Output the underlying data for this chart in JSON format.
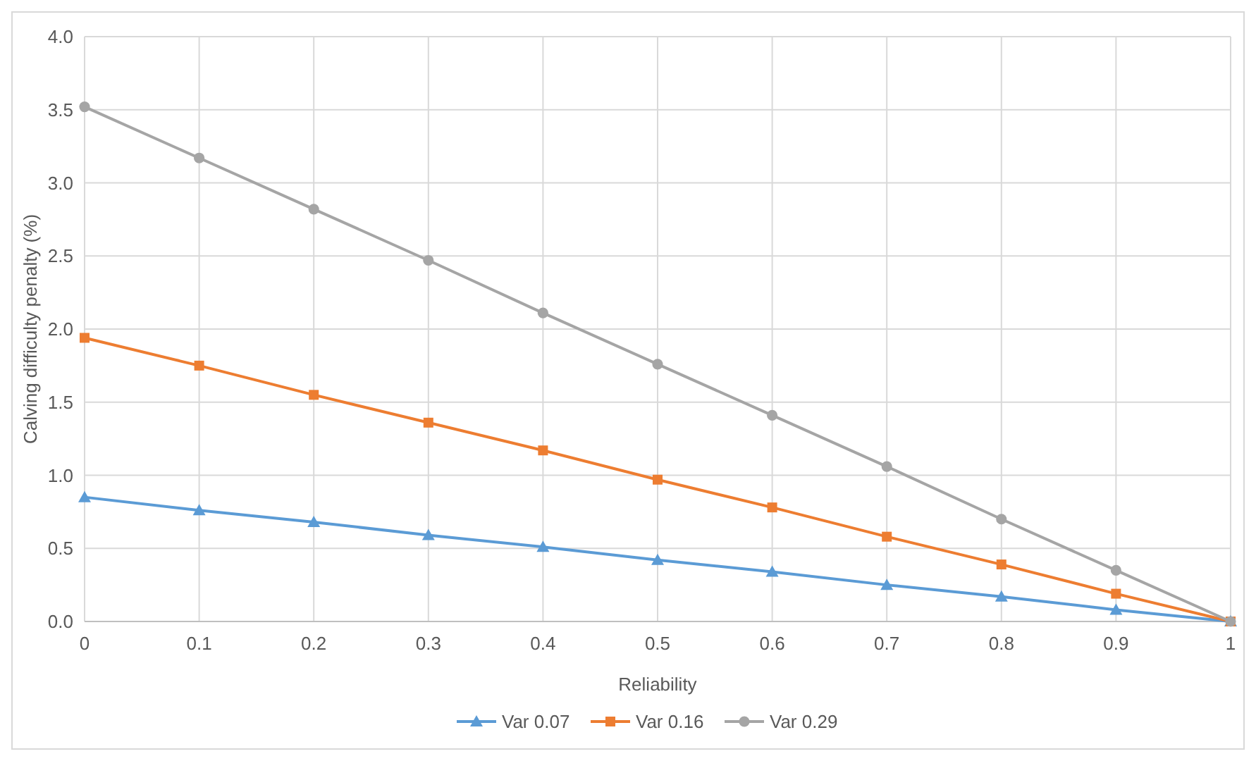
{
  "chart_data": {
    "type": "line",
    "xlabel": "Reliability",
    "ylabel": "Calving difficulty penalty (%)",
    "x": [
      0,
      0.1,
      0.2,
      0.3,
      0.4,
      0.5,
      0.6,
      0.7,
      0.8,
      0.9,
      1
    ],
    "xlim": [
      0,
      1
    ],
    "xticks": [
      0,
      0.1,
      0.2,
      0.3,
      0.4,
      0.5,
      0.6,
      0.7,
      0.8,
      0.9,
      1
    ],
    "ylim": [
      0,
      4
    ],
    "yticks": [
      {
        "value": 0,
        "label": "0.0"
      },
      {
        "value": 0.5,
        "label": "0.5"
      },
      {
        "value": 1,
        "label": "1.0"
      },
      {
        "value": 1.5,
        "label": "1.5"
      },
      {
        "value": 2,
        "label": "2.0"
      },
      {
        "value": 2.5,
        "label": "2.5"
      },
      {
        "value": 3,
        "label": "3.0"
      },
      {
        "value": 3.5,
        "label": "3.5"
      },
      {
        "value": 4,
        "label": "4.0"
      }
    ],
    "grid": true,
    "legend": "bottom",
    "line_style": "solid",
    "series": [
      {
        "name": "Var 0.07",
        "color": "#5b9bd5",
        "marker": "triangle",
        "values": [
          0.85,
          0.76,
          0.68,
          0.59,
          0.51,
          0.42,
          0.34,
          0.25,
          0.17,
          0.08,
          0
        ]
      },
      {
        "name": "Var 0.16",
        "color": "#ed7d31",
        "marker": "square",
        "values": [
          1.94,
          1.75,
          1.55,
          1.36,
          1.17,
          0.97,
          0.78,
          0.58,
          0.39,
          0.19,
          0
        ]
      },
      {
        "name": "Var 0.29",
        "color": "#a5a5a5",
        "marker": "circle",
        "values": [
          3.52,
          3.17,
          2.82,
          2.47,
          2.11,
          1.76,
          1.41,
          1.06,
          0.7,
          0.35,
          0
        ]
      }
    ]
  }
}
